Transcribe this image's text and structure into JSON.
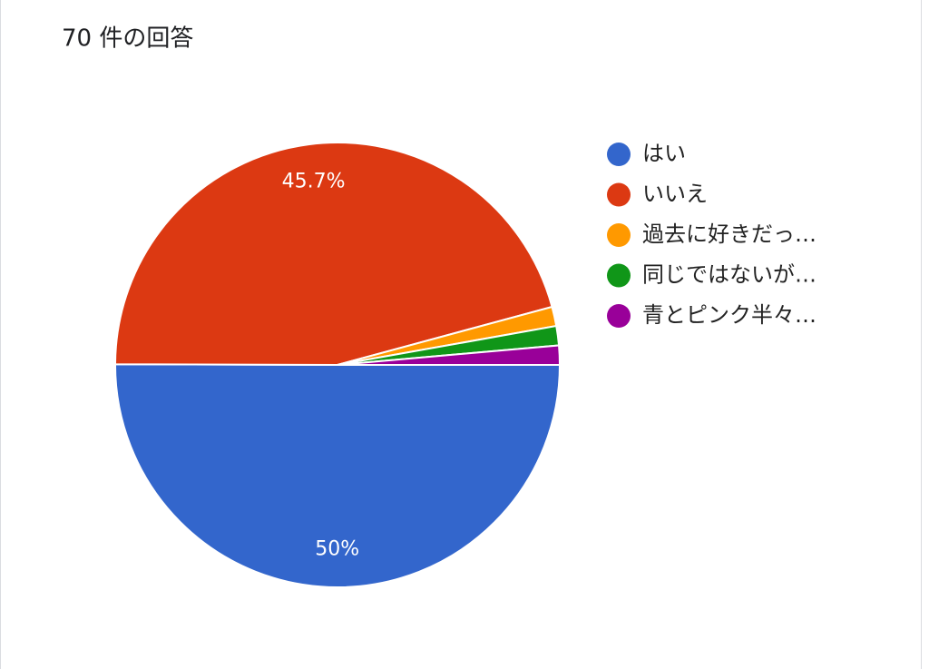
{
  "chart_data": {
    "type": "pie",
    "title": "70 件の回答",
    "categories": [
      "はい",
      "いいえ",
      "過去に好きだっ…",
      "同じではないが…",
      "青とピンク半々…"
    ],
    "values": [
      50,
      45.7,
      1.4,
      1.4,
      1.4
    ],
    "value_labels": [
      "50%",
      "45.7%",
      null,
      null,
      null
    ],
    "colors": [
      "#3366cc",
      "#dc3912",
      "#ff9900",
      "#109618",
      "#990099"
    ],
    "legend": "right"
  }
}
